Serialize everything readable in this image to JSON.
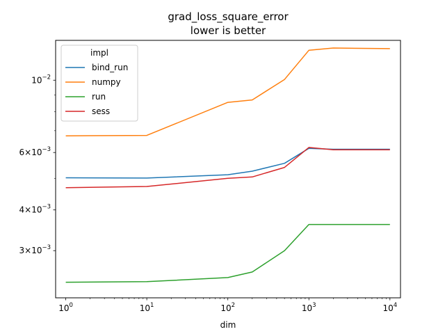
{
  "chart_data": {
    "type": "line",
    "title": "grad_loss_square_error",
    "subtitle": "lower is better",
    "xlabel": "dim",
    "ylabel": "",
    "x_scale": "log",
    "y_scale": "log",
    "xlim": [
      0.75,
      13500
    ],
    "ylim": [
      0.00215,
      0.01325
    ],
    "grid": false,
    "legend_position": "top-left",
    "legend_title": "impl",
    "x": [
      1,
      10,
      100,
      200,
      500,
      1000,
      2000,
      10000
    ],
    "x_ticks": [
      {
        "value": 1,
        "base": "10",
        "exp": "0"
      },
      {
        "value": 10,
        "base": "10",
        "exp": "1"
      },
      {
        "value": 100,
        "base": "10",
        "exp": "2"
      },
      {
        "value": 1000,
        "base": "10",
        "exp": "3"
      },
      {
        "value": 10000,
        "base": "10",
        "exp": "4"
      }
    ],
    "y_ticks": [
      {
        "value": 0.003,
        "mant": "3",
        "exp": "−3"
      },
      {
        "value": 0.004,
        "mant": "4",
        "exp": "−3"
      },
      {
        "value": 0.006,
        "mant": "6",
        "exp": "−3"
      },
      {
        "value": 0.01,
        "mant": "",
        "exp": "−2"
      }
    ],
    "y_minor_ticks": [
      0.005,
      0.007,
      0.008,
      0.009
    ],
    "series": [
      {
        "name": "bind_run",
        "color": "#1f77b4",
        "values": [
          0.00502,
          0.00501,
          0.00513,
          0.00526,
          0.00556,
          0.00618,
          0.00614,
          0.00614
        ]
      },
      {
        "name": "numpy",
        "color": "#ff7f0e",
        "values": [
          0.00675,
          0.00677,
          0.00855,
          0.0087,
          0.01005,
          0.01235,
          0.01255,
          0.0125
        ]
      },
      {
        "name": "run",
        "color": "#2ca02c",
        "values": [
          0.0024,
          0.00241,
          0.00248,
          0.00258,
          0.003,
          0.00361,
          0.00361,
          0.00361
        ]
      },
      {
        "name": "sess",
        "color": "#d62728",
        "values": [
          0.00468,
          0.00472,
          0.005,
          0.00505,
          0.0054,
          0.00622,
          0.00612,
          0.00612
        ]
      }
    ]
  }
}
